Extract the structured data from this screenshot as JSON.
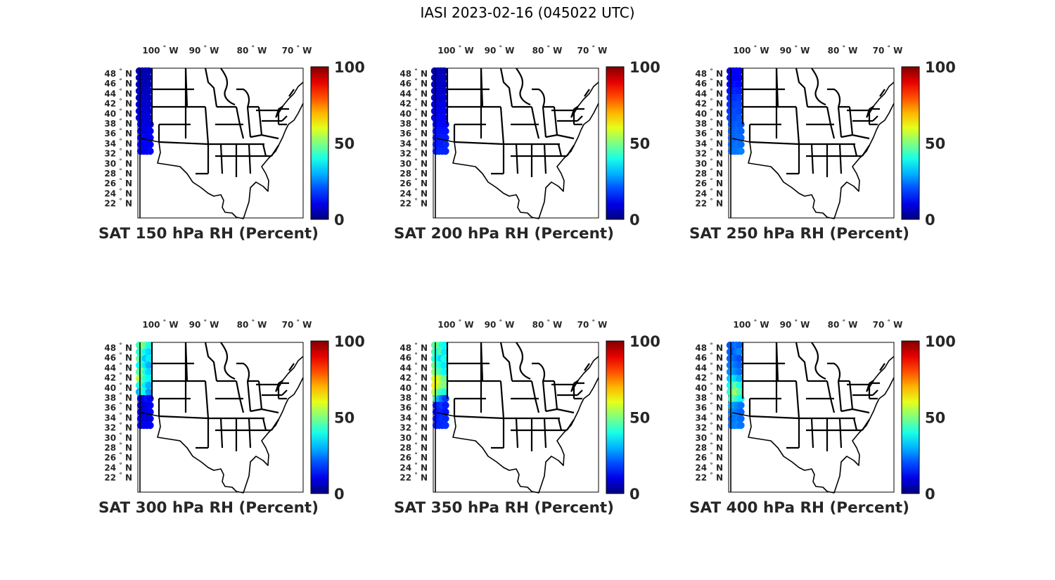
{
  "figure": {
    "title": "IASI 2023-02-16 (045022 UTC)"
  },
  "axes": {
    "lon_ticks": [
      {
        "deg": "100",
        "hemi": "W"
      },
      {
        "deg": "90",
        "hemi": "W"
      },
      {
        "deg": "80",
        "hemi": "W"
      },
      {
        "deg": "70",
        "hemi": "W"
      }
    ],
    "lat_ticks": [
      {
        "deg": "48",
        "hemi": "N"
      },
      {
        "deg": "46",
        "hemi": "N"
      },
      {
        "deg": "44",
        "hemi": "N"
      },
      {
        "deg": "42",
        "hemi": "N"
      },
      {
        "deg": "40",
        "hemi": "N"
      },
      {
        "deg": "38",
        "hemi": "N"
      },
      {
        "deg": "36",
        "hemi": "N"
      },
      {
        "deg": "34",
        "hemi": "N"
      },
      {
        "deg": "32",
        "hemi": "N"
      },
      {
        "deg": "30",
        "hemi": "N"
      },
      {
        "deg": "28",
        "hemi": "N"
      },
      {
        "deg": "26",
        "hemi": "N"
      },
      {
        "deg": "24",
        "hemi": "N"
      },
      {
        "deg": "22",
        "hemi": "N"
      }
    ],
    "colorbar_ticks": [
      "100",
      "50",
      "0"
    ],
    "colormap": "jet",
    "colorbar_range": [
      0,
      100
    ]
  },
  "panels": [
    {
      "title": "SAT 150 hPa RH (Percent)",
      "level_hpa": 150,
      "swath_rh": [
        [
          5,
          5,
          5,
          5
        ],
        [
          5,
          5,
          5,
          5
        ],
        [
          5,
          5,
          5,
          6
        ],
        [
          6,
          6,
          6,
          7
        ],
        [
          6,
          7,
          7,
          7
        ],
        [
          7,
          8,
          7,
          8
        ],
        [
          8,
          8,
          8,
          8
        ],
        [
          8,
          8,
          9,
          9
        ],
        [
          9,
          10,
          9,
          9
        ],
        [
          10,
          10,
          10,
          11
        ],
        [
          10,
          11,
          11,
          11
        ],
        [
          11,
          12,
          12,
          12
        ],
        [
          12,
          12,
          12,
          13
        ]
      ]
    },
    {
      "title": "SAT 200 hPa RH (Percent)",
      "level_hpa": 200,
      "swath_rh": [
        [
          5,
          6,
          6,
          5
        ],
        [
          6,
          6,
          6,
          6
        ],
        [
          6,
          7,
          7,
          7
        ],
        [
          7,
          7,
          8,
          7
        ],
        [
          8,
          8,
          8,
          9
        ],
        [
          9,
          9,
          9,
          10
        ],
        [
          10,
          10,
          11,
          11
        ],
        [
          11,
          12,
          12,
          12
        ],
        [
          12,
          13,
          13,
          13
        ],
        [
          13,
          14,
          14,
          14
        ],
        [
          14,
          14,
          15,
          15
        ],
        [
          15,
          15,
          15,
          16
        ],
        [
          15,
          16,
          16,
          16
        ]
      ]
    },
    {
      "title": "SAT 250 hPa RH (Percent)",
      "level_hpa": 250,
      "swath_rh": [
        [
          10,
          12,
          11,
          12
        ],
        [
          11,
          12,
          12,
          12
        ],
        [
          12,
          13,
          14,
          13
        ],
        [
          14,
          15,
          16,
          15
        ],
        [
          16,
          17,
          17,
          18
        ],
        [
          17,
          18,
          19,
          19
        ],
        [
          18,
          19,
          20,
          19
        ],
        [
          19,
          20,
          20,
          21
        ],
        [
          20,
          21,
          22,
          21
        ],
        [
          21,
          22,
          23,
          22
        ],
        [
          22,
          22,
          23,
          23
        ],
        [
          22,
          23,
          24,
          23
        ],
        [
          23,
          24,
          24,
          25
        ]
      ]
    },
    {
      "title": "SAT 300 hPa RH (Percent)",
      "level_hpa": 300,
      "swath_rh": [
        [
          44,
          52,
          48,
          40
        ],
        [
          42,
          46,
          38,
          34
        ],
        [
          48,
          40,
          32,
          36
        ],
        [
          38,
          44,
          36,
          30
        ],
        [
          46,
          52,
          40,
          34
        ],
        [
          55,
          48,
          42,
          38
        ],
        [
          40,
          46,
          36,
          30
        ],
        [
          30,
          42,
          38,
          28
        ],
        [
          8,
          10,
          14,
          12
        ],
        [
          8,
          8,
          10,
          12
        ],
        [
          9,
          8,
          10,
          11
        ],
        [
          10,
          9,
          9,
          10
        ],
        [
          10,
          10,
          11,
          11
        ]
      ]
    },
    {
      "title": "SAT 350 hPa RH (Percent)",
      "level_hpa": 350,
      "swath_rh": [
        [
          46,
          50,
          42,
          38
        ],
        [
          44,
          40,
          46,
          36
        ],
        [
          42,
          38,
          34,
          40
        ],
        [
          48,
          44,
          40,
          36
        ],
        [
          52,
          46,
          44,
          38
        ],
        [
          58,
          62,
          56,
          48
        ],
        [
          64,
          60,
          54,
          50
        ],
        [
          56,
          50,
          44,
          40
        ],
        [
          44,
          30,
          24,
          18
        ],
        [
          14,
          16,
          18,
          15
        ],
        [
          13,
          15,
          16,
          14
        ],
        [
          14,
          15,
          17,
          16
        ],
        [
          15,
          16,
          16,
          17
        ]
      ]
    },
    {
      "title": "SAT 400 hPa RH (Percent)",
      "level_hpa": 400,
      "swath_rh": [
        [
          20,
          22,
          24,
          22
        ],
        [
          22,
          20,
          24,
          26
        ],
        [
          22,
          24,
          22,
          20
        ],
        [
          24,
          26,
          24,
          22
        ],
        [
          26,
          28,
          26,
          24
        ],
        [
          32,
          36,
          34,
          30
        ],
        [
          38,
          44,
          48,
          40
        ],
        [
          42,
          50,
          54,
          46
        ],
        [
          44,
          46,
          42,
          38
        ],
        [
          30,
          28,
          26,
          24
        ],
        [
          24,
          26,
          24,
          22
        ],
        [
          22,
          24,
          25,
          23
        ],
        [
          24,
          25,
          26,
          24
        ]
      ]
    }
  ]
}
